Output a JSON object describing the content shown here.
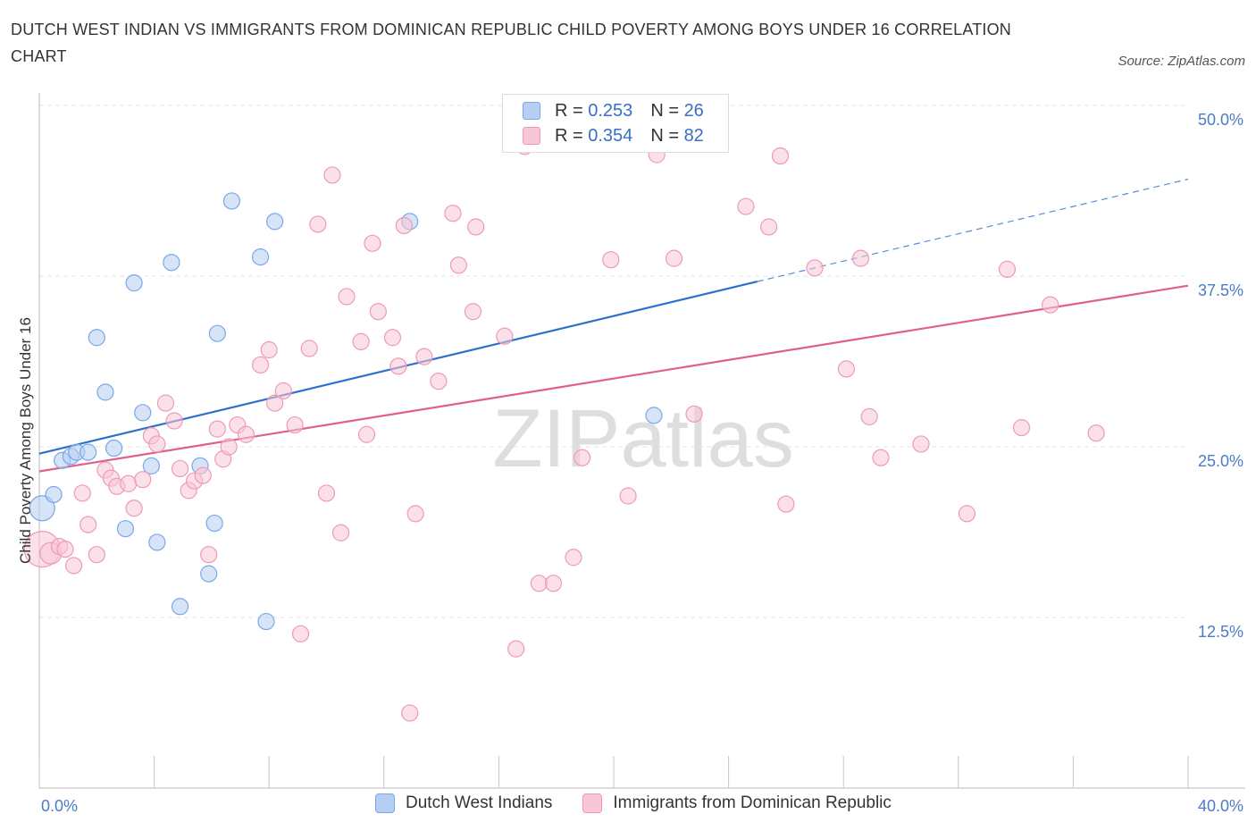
{
  "title": "DUTCH WEST INDIAN VS IMMIGRANTS FROM DOMINICAN REPUBLIC CHILD POVERTY AMONG BOYS UNDER 16 CORRELATION CHART",
  "source": "Source: ZipAtlas.com",
  "watermark": "ZIPatlas",
  "legend_stats": [
    {
      "r_label": "R = ",
      "r_value": "0.253",
      "n_label": "N = ",
      "n_value": "26"
    },
    {
      "r_label": "R = ",
      "r_value": "0.354",
      "n_label": "N = ",
      "n_value": "82"
    }
  ],
  "chart_data": {
    "type": "scatter",
    "ylabel": "Child Poverty Among Boys Under 16",
    "xlim": [
      0,
      40
    ],
    "ylim": [
      0,
      50
    ],
    "x_tick_labels": [
      "0.0%",
      "40.0%"
    ],
    "y_ticks": [
      12.5,
      25.0,
      37.5,
      50.0
    ],
    "y_tick_labels": [
      "12.5%",
      "25.0%",
      "37.5%",
      "50.0%"
    ],
    "grid": true,
    "legend_position": "bottom",
    "series": [
      {
        "name": "Dutch West Indians",
        "color": "#7aa7e8",
        "fill": "#b7cef3",
        "trend_color": "#2d6fcc",
        "trend": {
          "x0": 0,
          "y0": 24.5,
          "x1": 25,
          "y1": 37.1,
          "x_ext": 40,
          "y_ext": 44.6
        },
        "points": [
          [
            0.1,
            20.5,
            14
          ],
          [
            0.5,
            21.5,
            9
          ],
          [
            0.8,
            24.0,
            9
          ],
          [
            1.1,
            24.3,
            9
          ],
          [
            1.3,
            24.6,
            9
          ],
          [
            1.7,
            24.6,
            9
          ],
          [
            2.0,
            33.0,
            9
          ],
          [
            2.3,
            29.0,
            9
          ],
          [
            2.6,
            24.9,
            9
          ],
          [
            3.0,
            19.0,
            9
          ],
          [
            3.3,
            37.0,
            9
          ],
          [
            3.6,
            27.5,
            9
          ],
          [
            3.9,
            23.6,
            9
          ],
          [
            4.1,
            18.0,
            9
          ],
          [
            4.6,
            38.5,
            9
          ],
          [
            4.9,
            13.3,
            9
          ],
          [
            5.6,
            23.6,
            9
          ],
          [
            5.9,
            15.7,
            9
          ],
          [
            6.1,
            19.4,
            9
          ],
          [
            6.2,
            33.3,
            9
          ],
          [
            6.7,
            43.0,
            9
          ],
          [
            7.7,
            38.9,
            9
          ],
          [
            7.9,
            12.2,
            9
          ],
          [
            8.2,
            41.5,
            9
          ],
          [
            12.9,
            41.5,
            9
          ],
          [
            21.4,
            27.3,
            9
          ]
        ]
      },
      {
        "name": "Immigrants from Dominican Republic",
        "color": "#ee9ab5",
        "fill": "#f8c6d6",
        "trend_color": "#e0608a",
        "trend": {
          "x0": 0,
          "y0": 23.2,
          "x1": 40,
          "y1": 36.8
        },
        "points": [
          [
            0.1,
            17.5,
            20
          ],
          [
            0.4,
            17.2,
            12
          ],
          [
            0.7,
            17.7,
            9
          ],
          [
            0.9,
            17.5,
            9
          ],
          [
            1.2,
            16.3,
            9
          ],
          [
            1.5,
            21.6,
            9
          ],
          [
            1.7,
            19.3,
            9
          ],
          [
            2.0,
            17.1,
            9
          ],
          [
            2.3,
            23.3,
            9
          ],
          [
            2.5,
            22.7,
            9
          ],
          [
            2.7,
            22.1,
            9
          ],
          [
            3.1,
            22.3,
            9
          ],
          [
            3.3,
            20.5,
            9
          ],
          [
            3.6,
            22.6,
            9
          ],
          [
            3.9,
            25.8,
            9
          ],
          [
            4.1,
            25.2,
            9
          ],
          [
            4.4,
            28.2,
            9
          ],
          [
            4.7,
            26.9,
            9
          ],
          [
            4.9,
            23.4,
            9
          ],
          [
            5.2,
            21.8,
            9
          ],
          [
            5.4,
            22.5,
            9
          ],
          [
            5.7,
            22.9,
            9
          ],
          [
            5.9,
            17.1,
            9
          ],
          [
            6.2,
            26.3,
            9
          ],
          [
            6.4,
            24.1,
            9
          ],
          [
            6.6,
            25.0,
            9
          ],
          [
            6.9,
            26.6,
            9
          ],
          [
            7.2,
            25.9,
            9
          ],
          [
            7.7,
            31.0,
            9
          ],
          [
            8.0,
            32.1,
            9
          ],
          [
            8.2,
            28.2,
            9
          ],
          [
            8.5,
            29.1,
            9
          ],
          [
            8.9,
            26.6,
            9
          ],
          [
            9.1,
            11.3,
            9
          ],
          [
            9.4,
            32.2,
            9
          ],
          [
            9.7,
            41.3,
            9
          ],
          [
            10.0,
            21.6,
            9
          ],
          [
            10.2,
            44.9,
            9
          ],
          [
            10.5,
            18.7,
            9
          ],
          [
            10.7,
            36.0,
            9
          ],
          [
            11.2,
            32.7,
            9
          ],
          [
            11.4,
            25.9,
            9
          ],
          [
            11.6,
            39.9,
            9
          ],
          [
            11.8,
            34.9,
            9
          ],
          [
            12.3,
            33.0,
            9
          ],
          [
            12.5,
            30.9,
            9
          ],
          [
            12.7,
            41.2,
            9
          ],
          [
            12.9,
            5.5,
            9
          ],
          [
            13.1,
            20.1,
            9
          ],
          [
            13.4,
            31.6,
            9
          ],
          [
            13.9,
            29.8,
            9
          ],
          [
            14.4,
            42.1,
            9
          ],
          [
            14.6,
            38.3,
            9
          ],
          [
            15.1,
            34.9,
            9
          ],
          [
            15.2,
            41.1,
            9
          ],
          [
            16.2,
            33.1,
            9
          ],
          [
            16.6,
            10.2,
            9
          ],
          [
            16.9,
            47.0,
            9
          ],
          [
            17.4,
            15.0,
            9
          ],
          [
            17.9,
            15.0,
            9
          ],
          [
            18.6,
            16.9,
            9
          ],
          [
            18.9,
            24.2,
            9
          ],
          [
            19.9,
            38.7,
            9
          ],
          [
            20.5,
            21.4,
            9
          ],
          [
            21.5,
            46.4,
            9
          ],
          [
            22.1,
            38.8,
            9
          ],
          [
            22.8,
            27.4,
            9
          ],
          [
            24.6,
            42.6,
            9
          ],
          [
            25.4,
            41.1,
            9
          ],
          [
            25.8,
            46.3,
            9
          ],
          [
            26.0,
            20.8,
            9
          ],
          [
            27.0,
            38.1,
            9
          ],
          [
            28.1,
            30.7,
            9
          ],
          [
            28.6,
            38.8,
            9
          ],
          [
            28.9,
            27.2,
            9
          ],
          [
            29.3,
            24.2,
            9
          ],
          [
            30.7,
            25.2,
            9
          ],
          [
            32.3,
            20.1,
            9
          ],
          [
            33.7,
            38.0,
            9
          ],
          [
            34.2,
            26.4,
            9
          ],
          [
            35.2,
            35.4,
            9
          ],
          [
            36.8,
            26.0,
            9
          ]
        ]
      }
    ]
  }
}
